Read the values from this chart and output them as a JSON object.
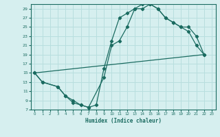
{
  "xlabel": "Humidex (Indice chaleur)",
  "background_color": "#d6efef",
  "grid_color": "#b8dede",
  "line_color": "#1a6b60",
  "xlim": [
    -0.5,
    23.5
  ],
  "ylim": [
    7,
    30
  ],
  "xticks": [
    0,
    1,
    2,
    3,
    4,
    5,
    6,
    7,
    8,
    9,
    10,
    11,
    12,
    13,
    14,
    15,
    16,
    17,
    18,
    19,
    20,
    21,
    22,
    23
  ],
  "yticks": [
    7,
    9,
    11,
    13,
    15,
    17,
    19,
    21,
    23,
    25,
    27,
    29
  ],
  "line1_x": [
    0,
    1,
    3,
    4,
    5,
    6,
    7,
    8,
    9,
    10,
    11,
    12,
    13,
    14,
    15,
    16,
    17,
    18,
    19,
    20,
    21,
    22
  ],
  "line1_y": [
    15,
    13,
    12,
    10,
    9,
    8,
    7.5,
    8,
    16,
    22,
    27,
    28,
    29,
    30,
    30,
    29,
    27,
    26,
    25,
    25,
    23,
    19
  ],
  "line2_x": [
    0,
    1,
    3,
    4,
    5,
    6,
    7,
    9,
    10,
    11,
    12,
    13,
    14,
    15,
    16,
    17,
    18,
    19,
    20,
    21,
    22
  ],
  "line2_y": [
    15,
    13,
    12,
    10,
    8.5,
    8,
    7.5,
    14,
    21,
    22,
    25,
    29,
    29,
    30,
    29,
    27,
    26,
    25,
    24,
    21,
    19
  ],
  "line3_x": [
    0,
    22
  ],
  "line3_y": [
    15,
    19
  ]
}
